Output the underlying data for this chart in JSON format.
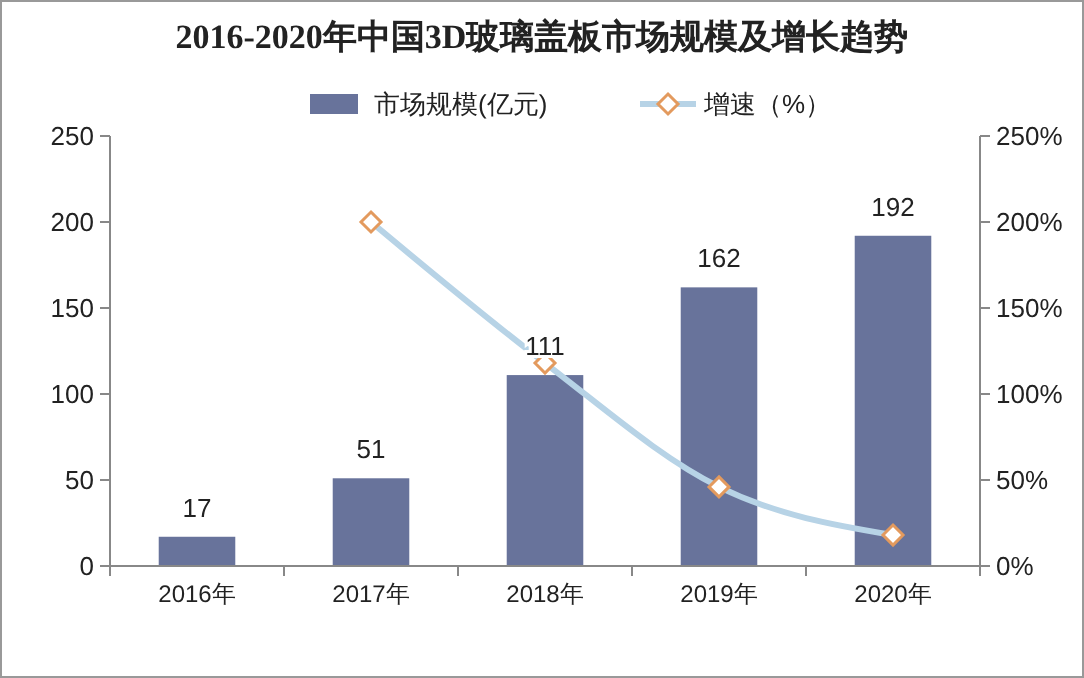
{
  "chart_data": {
    "type": "bar",
    "title": "2016-2020年中国3D玻璃盖板市场规模及增长趋势",
    "categories": [
      "2016年",
      "2017年",
      "2018年",
      "2019年",
      "2020年"
    ],
    "series": [
      {
        "name": "市场规模(亿元)",
        "type": "bar",
        "color": "#68739b",
        "values": [
          17,
          51,
          111,
          162,
          192
        ],
        "value_labels": [
          "17",
          "51",
          "111",
          "162",
          "192"
        ]
      },
      {
        "name": "增速（%）",
        "type": "line",
        "axis": "y2",
        "color": "#b7d3e6",
        "marker": "diamond",
        "values": [
          null,
          200,
          118,
          46,
          18
        ]
      }
    ],
    "ylim": [
      0,
      250
    ],
    "yticks": [
      0,
      50,
      100,
      150,
      200,
      250
    ],
    "y2lim": [
      0,
      250
    ],
    "y2ticks": [
      {
        "value": 0,
        "label": "0%"
      },
      {
        "value": 50,
        "label": "50%"
      },
      {
        "value": 100,
        "label": "100%"
      },
      {
        "value": 150,
        "label": "150%"
      },
      {
        "value": 200,
        "label": "200%"
      },
      {
        "value": 250,
        "label": "250%"
      }
    ],
    "grid": false,
    "legend": "top"
  }
}
